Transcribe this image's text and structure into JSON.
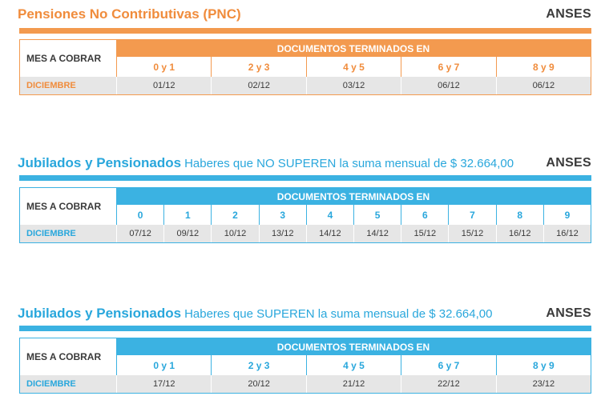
{
  "sections": [
    {
      "title_bold": "Pensiones No Contributivas (PNC)",
      "title_sub": "",
      "logo": "ANSES",
      "mes_label": "MES A COBRAR",
      "doc_header": "DOCUMENTOS TERMINADOS EN",
      "mes": "DICIEMBRE",
      "digits": [
        "0 y 1",
        "2 y 3",
        "4 y 5",
        "6 y 7",
        "8 y 9"
      ],
      "dates": [
        "01/12",
        "02/12",
        "03/12",
        "06/12",
        "06/12"
      ],
      "accent": "#f39a4f"
    },
    {
      "title_bold": "Jubilados y Pensionados",
      "title_sub": "Haberes que NO SUPEREN la suma mensual de $ 32.664,00",
      "logo": "ANSES",
      "mes_label": "MES A COBRAR",
      "doc_header": "DOCUMENTOS TERMINADOS EN",
      "mes": "DICIEMBRE",
      "digits": [
        "0",
        "1",
        "2",
        "3",
        "4",
        "5",
        "6",
        "7",
        "8",
        "9"
      ],
      "dates": [
        "07/12",
        "09/12",
        "10/12",
        "13/12",
        "14/12",
        "14/12",
        "15/12",
        "15/12",
        "16/12",
        "16/12"
      ],
      "accent": "#3bb2e2"
    },
    {
      "title_bold": "Jubilados y Pensionados",
      "title_sub": "Haberes que SUPEREN la suma mensual de $ 32.664,00",
      "logo": "ANSES",
      "mes_label": "MES A COBRAR",
      "doc_header": "DOCUMENTOS TERMINADOS EN",
      "mes": "DICIEMBRE",
      "digits": [
        "0 y 1",
        "2 y 3",
        "4 y 5",
        "6 y 7",
        "8 y 9"
      ],
      "dates": [
        "17/12",
        "20/12",
        "21/12",
        "22/12",
        "23/12"
      ],
      "accent": "#3bb2e2"
    }
  ]
}
